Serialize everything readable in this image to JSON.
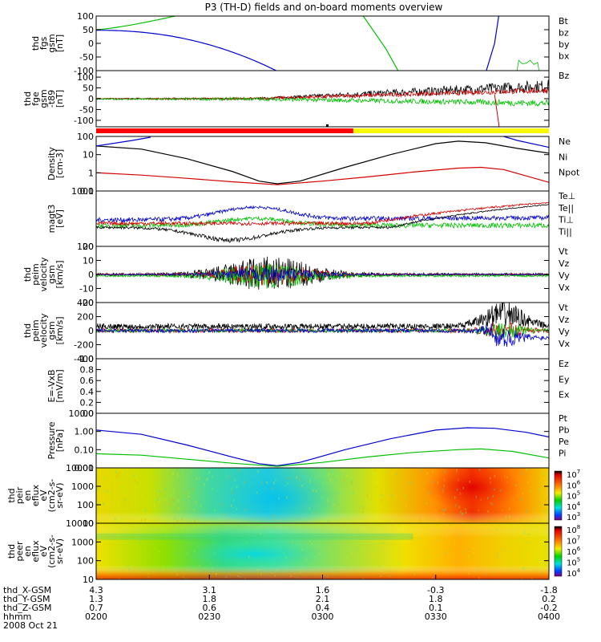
{
  "title": "P3 (TH-D) fields and on-board moments overview",
  "legend_colors": {
    "black": "#000000",
    "red": "#d40000",
    "green": "#00c000",
    "blue": "#0000d0",
    "yellow": "#f0f000"
  },
  "chart_data": [
    {
      "type": "line",
      "id": "fgs",
      "ylabel": [
        "thd",
        "fgs",
        "gsm",
        "[nT]"
      ],
      "ylim": [
        -100,
        100
      ],
      "yticks": [
        {
          "v": 100,
          "l": "100"
        },
        {
          "v": 50,
          "l": "50"
        },
        {
          "v": 0,
          "l": "0"
        },
        {
          "v": -50,
          "l": "-50"
        },
        {
          "v": -100,
          "l": "-100"
        }
      ],
      "legend": [
        {
          "name": "Bt",
          "color": "black"
        },
        {
          "name": "bz",
          "color": "red"
        },
        {
          "name": "by",
          "color": "green"
        },
        {
          "name": "bx",
          "color": "blue"
        }
      ]
    },
    {
      "type": "line",
      "id": "fge",
      "ylabel": [
        "thd",
        "fge",
        "gsm",
        "-t89",
        "[nT]"
      ],
      "ylim": [
        -130,
        130
      ],
      "yticks": [
        {
          "v": 100,
          "l": "100"
        },
        {
          "v": 50,
          "l": "50"
        },
        {
          "v": 0,
          "l": "0"
        },
        {
          "v": -50,
          "l": "-50"
        },
        {
          "v": -100,
          "l": "-100"
        }
      ],
      "legend": [
        {
          "name": "Bz",
          "color": "red"
        }
      ]
    },
    {
      "type": "line",
      "id": "density",
      "ylabel": [
        "Density",
        "[cm-3]"
      ],
      "log": true,
      "ylim": [
        0.1,
        100
      ],
      "yticks": [
        {
          "v": 100,
          "l": "100"
        },
        {
          "v": 10,
          "l": "10"
        },
        {
          "v": 1,
          "l": "1"
        },
        {
          "v": 0.1,
          "l": "0.1"
        }
      ],
      "legend": [
        {
          "name": "Ne",
          "color": "red"
        },
        {
          "name": "Ni",
          "color": "black"
        },
        {
          "name": "Npot",
          "color": "blue"
        }
      ]
    },
    {
      "type": "line",
      "id": "temp",
      "ylabel": [
        "magt3",
        "[eV]"
      ],
      "log": true,
      "ylim": [
        100,
        1000
      ],
      "yticks": [
        {
          "v": 1000,
          "l": "1000"
        },
        {
          "v": 100,
          "l": "100"
        }
      ],
      "legend": [
        {
          "name": "Te⊥",
          "color": "red"
        },
        {
          "name": "Te||",
          "color": "black"
        },
        {
          "name": "Ti⊥",
          "color": "blue"
        },
        {
          "name": "Ti||",
          "color": "green"
        }
      ]
    },
    {
      "type": "line",
      "id": "vel_e",
      "ylabel": [
        "thd",
        "peim",
        "velocity",
        "gsm",
        "[km/s]"
      ],
      "ylim": [
        -20,
        20
      ],
      "yticks": [
        {
          "v": 20,
          "l": "20"
        },
        {
          "v": 10,
          "l": "10"
        },
        {
          "v": 0,
          "l": "0"
        },
        {
          "v": -10,
          "l": "-10"
        },
        {
          "v": -20,
          "l": "-20"
        }
      ],
      "legend": [
        {
          "name": "Vt",
          "color": "black"
        },
        {
          "name": "Vz",
          "color": "red"
        },
        {
          "name": "Vy",
          "color": "green"
        },
        {
          "name": "Vx",
          "color": "blue"
        }
      ]
    },
    {
      "type": "line",
      "id": "vel_i",
      "ylabel": [
        "thd",
        "peim",
        "velocity",
        "gsm",
        "[km/s]"
      ],
      "ylim": [
        -400,
        400
      ],
      "yticks": [
        {
          "v": 400,
          "l": "400"
        },
        {
          "v": 200,
          "l": "200"
        },
        {
          "v": 0,
          "l": "0"
        },
        {
          "v": -200,
          "l": "-200"
        },
        {
          "v": -400,
          "l": "-400"
        }
      ],
      "legend": [
        {
          "name": "Vt",
          "color": "black"
        },
        {
          "name": "Vz",
          "color": "red"
        },
        {
          "name": "Vy",
          "color": "green"
        },
        {
          "name": "Vx",
          "color": "blue"
        }
      ]
    },
    {
      "type": "line",
      "id": "efield",
      "ylabel": [
        "E=-VxB",
        "[mV/m]"
      ],
      "ylim": [
        0,
        1
      ],
      "yticks": [
        {
          "v": 1,
          "l": "1.0"
        },
        {
          "v": 0.8,
          "l": "0.8"
        },
        {
          "v": 0.6,
          "l": "0.6"
        },
        {
          "v": 0.4,
          "l": "0.4"
        },
        {
          "v": 0.2,
          "l": "0.2"
        },
        {
          "v": 0,
          "l": "0.0"
        }
      ],
      "legend": [
        {
          "name": "Ez",
          "color": "red"
        },
        {
          "name": "Ey",
          "color": "green"
        },
        {
          "name": "Ex",
          "color": "blue"
        }
      ]
    },
    {
      "type": "line",
      "id": "pressure",
      "ylabel": [
        "Pressure",
        "[nPa]"
      ],
      "log": true,
      "ylim": [
        0.01,
        10
      ],
      "yticks": [
        {
          "v": 10,
          "l": "10.00"
        },
        {
          "v": 1,
          "l": "1.00"
        },
        {
          "v": 0.1,
          "l": "0.10"
        },
        {
          "v": 0.01,
          "l": "0.01"
        }
      ],
      "legend": [
        {
          "name": "Pt",
          "color": "black"
        },
        {
          "name": "Pb",
          "color": "red"
        },
        {
          "name": "Pe",
          "color": "green"
        },
        {
          "name": "Pi",
          "color": "blue"
        }
      ]
    },
    {
      "type": "heatmap",
      "id": "ion_spec",
      "ylabel": [
        "thd",
        "peir",
        "en",
        "eflux",
        "eV",
        "(cm2-s-",
        "sr-eV)"
      ],
      "log": true,
      "ylim": [
        10,
        10000
      ],
      "yticks": [
        {
          "v": 10000,
          "l": "10000"
        },
        {
          "v": 1000,
          "l": "1000"
        },
        {
          "v": 100,
          "l": "100"
        },
        {
          "v": 10,
          "l": "10"
        }
      ],
      "colorbar": [
        {
          "e": "7"
        },
        {
          "e": "6"
        },
        {
          "e": "5"
        },
        {
          "e": "4"
        },
        {
          "e": "3"
        }
      ]
    },
    {
      "type": "heatmap",
      "id": "elec_spec",
      "ylabel": [
        "thd",
        "peer",
        "en",
        "eflux",
        "eV",
        "(cm2-s-",
        "sr-eV)"
      ],
      "log": true,
      "ylim": [
        10,
        10000
      ],
      "yticks": [
        {
          "v": 10000,
          "l": "10000"
        },
        {
          "v": 1000,
          "l": "1000"
        },
        {
          "v": 100,
          "l": "100"
        },
        {
          "v": 10,
          "l": "10"
        }
      ],
      "colorbar": [
        {
          "e": "8"
        },
        {
          "e": "7"
        },
        {
          "e": "6"
        },
        {
          "e": "5"
        },
        {
          "e": "4"
        }
      ]
    }
  ],
  "xaxis": {
    "rows": [
      {
        "label": "thd_X-GSM",
        "values": [
          "4.3",
          "3.1",
          "1.6",
          "-0.3",
          "-1.8"
        ]
      },
      {
        "label": "thd_Y-GSM",
        "values": [
          "1.3",
          "1.8",
          "2.1",
          "1.8",
          "0.2"
        ]
      },
      {
        "label": "thd_Z-GSM",
        "values": [
          "0.7",
          "0.6",
          "0.4",
          "0.1",
          "-0.2"
        ]
      },
      {
        "label": "hhmm",
        "values": [
          "0200",
          "0230",
          "0300",
          "0330",
          "0400"
        ]
      }
    ],
    "date": "2008 Oct 21"
  },
  "curves": {
    "density_ni": [
      [
        0,
        30
      ],
      [
        0.1,
        20
      ],
      [
        0.2,
        6
      ],
      [
        0.3,
        1.2
      ],
      [
        0.36,
        0.35
      ],
      [
        0.4,
        0.25
      ],
      [
        0.45,
        0.35
      ],
      [
        0.55,
        2
      ],
      [
        0.65,
        10
      ],
      [
        0.75,
        40
      ],
      [
        0.8,
        55
      ],
      [
        0.86,
        45
      ],
      [
        0.93,
        22
      ],
      [
        1,
        12
      ]
    ],
    "density_ne": [
      [
        0,
        1
      ],
      [
        0.1,
        0.75
      ],
      [
        0.2,
        0.5
      ],
      [
        0.3,
        0.32
      ],
      [
        0.4,
        0.22
      ],
      [
        0.5,
        0.35
      ],
      [
        0.6,
        0.6
      ],
      [
        0.7,
        1.1
      ],
      [
        0.8,
        1.8
      ],
      [
        0.85,
        2
      ],
      [
        0.9,
        1.5
      ],
      [
        1,
        0.3
      ]
    ],
    "density_npot": [
      [
        0,
        30
      ],
      [
        0.08,
        60
      ],
      [
        0.12,
        90
      ]
    ],
    "pressure_pi": [
      [
        0,
        1.2
      ],
      [
        0.1,
        0.7
      ],
      [
        0.2,
        0.18
      ],
      [
        0.3,
        0.04
      ],
      [
        0.36,
        0.017
      ],
      [
        0.4,
        0.013
      ],
      [
        0.45,
        0.02
      ],
      [
        0.55,
        0.1
      ],
      [
        0.65,
        0.4
      ],
      [
        0.75,
        1.2
      ],
      [
        0.82,
        1.6
      ],
      [
        0.88,
        1.5
      ],
      [
        0.95,
        0.9
      ],
      [
        1,
        0.5
      ]
    ],
    "pressure_pe": [
      [
        0,
        0.06
      ],
      [
        0.1,
        0.05
      ],
      [
        0.2,
        0.03
      ],
      [
        0.3,
        0.018
      ],
      [
        0.4,
        0.012
      ],
      [
        0.5,
        0.02
      ],
      [
        0.6,
        0.04
      ],
      [
        0.7,
        0.07
      ],
      [
        0.8,
        0.1
      ],
      [
        0.85,
        0.11
      ],
      [
        0.92,
        0.08
      ],
      [
        1,
        0.035
      ]
    ]
  }
}
